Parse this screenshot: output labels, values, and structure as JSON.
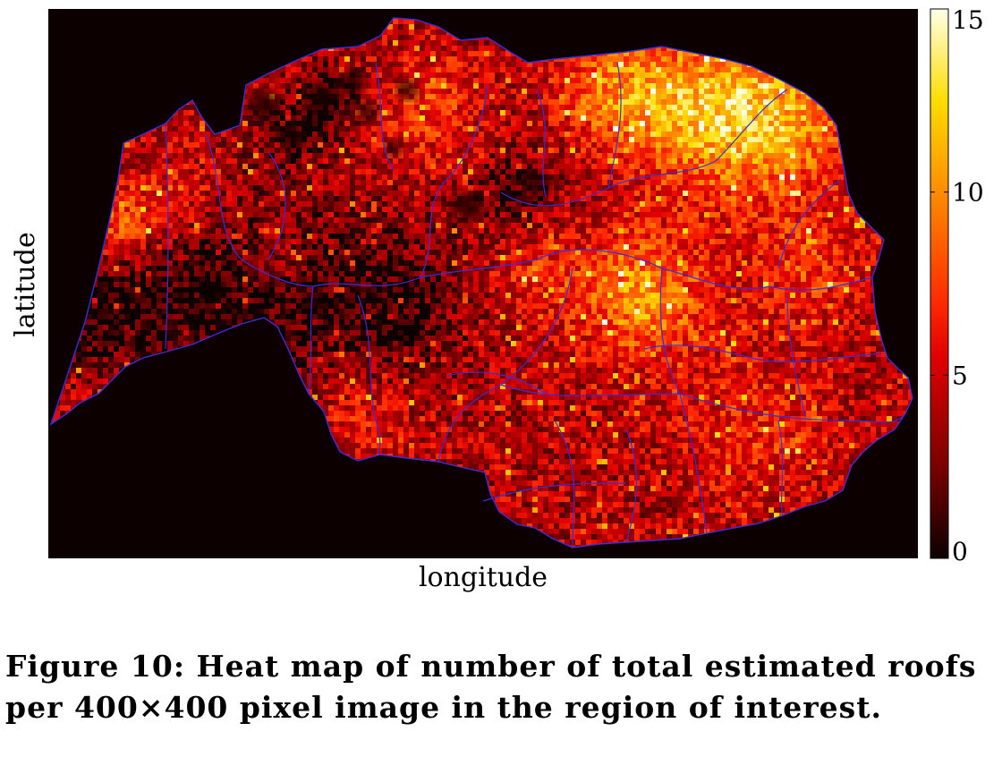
{
  "chart_data": {
    "type": "heatmap",
    "title": "",
    "xlabel": "longitude",
    "ylabel": "latitude",
    "colorbar": {
      "colormap": "hot",
      "range": [
        0,
        15
      ],
      "ticks": [
        0,
        5,
        10,
        15
      ],
      "tick_labels": [
        "0",
        "5",
        "10",
        "15"
      ]
    },
    "colormap_stops": [
      {
        "value": 0,
        "color": "#0d0000"
      },
      {
        "value": 2.5,
        "color": "#7a0000"
      },
      {
        "value": 5.5,
        "color": "#e00000"
      },
      {
        "value": 7,
        "color": "#ff2a00"
      },
      {
        "value": 10,
        "color": "#ff8c00"
      },
      {
        "value": 12.5,
        "color": "#ffdd00"
      },
      {
        "value": 15,
        "color": "#ffffe8"
      }
    ],
    "background_color": "#0d0000",
    "boundary_color": "#3a2fd6",
    "grid": false
  },
  "caption": {
    "text": "Figure 10: Heat map of number of total estimated roofs per 400×400 pixel image in the region of interest."
  }
}
